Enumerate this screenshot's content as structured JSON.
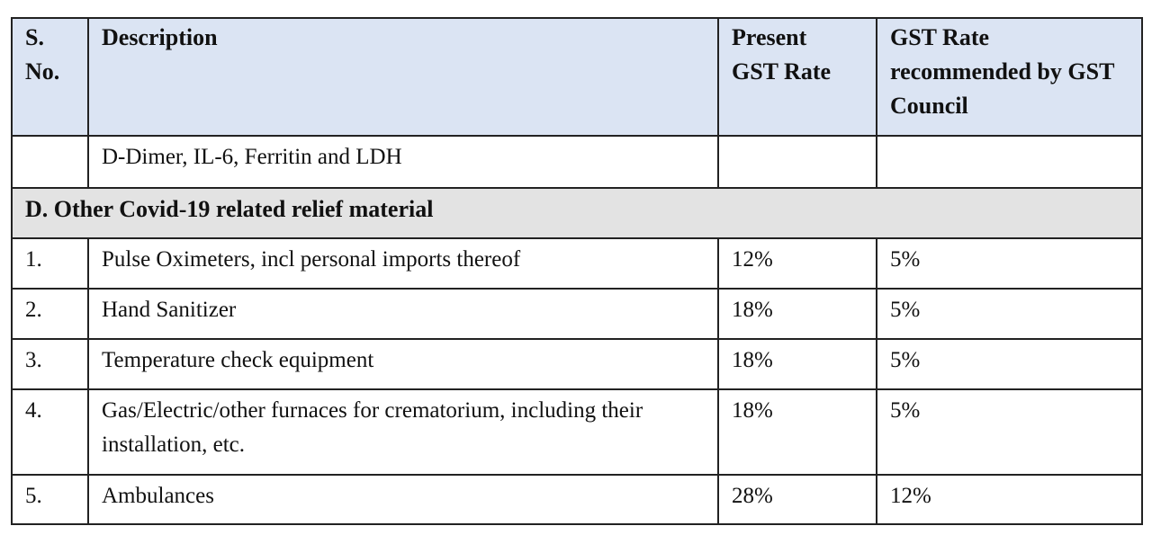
{
  "table": {
    "header": [
      "S. No.",
      "Description",
      "Present GST Rate",
      "GST Rate recommended by GST Council"
    ],
    "rows": [
      {
        "cells": [
          null,
          "D-Dimer, IL-6, Ferritin  and LDH",
          null,
          null
        ]
      },
      {
        "section": "D.  Other Covid-19 related relief material"
      },
      {
        "cells": [
          "1.",
          "Pulse Oximeters, incl personal imports thereof",
          "12%",
          "5%"
        ]
      },
      {
        "cells": [
          "2.",
          "Hand Sanitizer",
          "18%",
          "5%"
        ]
      },
      {
        "cells": [
          "3.",
          "Temperature check equipment",
          "18%",
          "5%"
        ]
      },
      {
        "cells": [
          "4.",
          "Gas/Electric/other furnaces for crematorium, including their installation, etc.",
          "18%",
          "5%"
        ]
      },
      {
        "cells": [
          "5.",
          "Ambulances",
          "28%",
          "12%"
        ]
      }
    ]
  }
}
